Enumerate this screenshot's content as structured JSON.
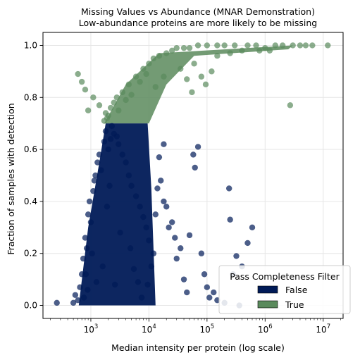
{
  "chart_data": {
    "type": "scatter",
    "title": "Missing Values vs Abundance (MNAR Demonstration)",
    "subtitle": "Low-abundance proteins are more likely to be missing",
    "xlabel": "Median intensity per protein (log scale)",
    "ylabel": "Fraction of samples with detection",
    "xscale": "log",
    "xlim": [
      150,
      22000000
    ],
    "ylim": [
      -0.05,
      1.05
    ],
    "x_ticks": [
      {
        "value": 1000,
        "base": "10",
        "exp": "3"
      },
      {
        "value": 10000,
        "base": "10",
        "exp": "4"
      },
      {
        "value": 100000,
        "base": "10",
        "exp": "5"
      },
      {
        "value": 1000000,
        "base": "10",
        "exp": "6"
      },
      {
        "value": 10000000,
        "base": "10",
        "exp": "7"
      }
    ],
    "y_ticks": [
      {
        "value": 0.0,
        "label": "0.0"
      },
      {
        "value": 0.2,
        "label": "0.2"
      },
      {
        "value": 0.4,
        "label": "0.4"
      },
      {
        "value": 0.6,
        "label": "0.6"
      },
      {
        "value": 0.8,
        "label": "0.8"
      },
      {
        "value": 1.0,
        "label": "1.0"
      }
    ],
    "grid": true,
    "threshold": 0.7,
    "legend": {
      "title": "Pass Completeness Filter",
      "placement": "lower-right",
      "entries": [
        {
          "label": "False",
          "color": "#001a57"
        },
        {
          "label": "True",
          "color": "#5a8a5c"
        }
      ]
    },
    "series": [
      {
        "name": "False",
        "color": "#001a57",
        "points": [
          [
            260,
            0.01
          ],
          [
            500,
            0.01
          ],
          [
            540,
            0.04
          ],
          [
            600,
            0.02
          ],
          [
            650,
            0.07
          ],
          [
            700,
            0.12
          ],
          [
            740,
            0.18
          ],
          [
            800,
            0.26
          ],
          [
            850,
            0.22
          ],
          [
            900,
            0.35
          ],
          [
            950,
            0.4
          ],
          [
            1000,
            0.32
          ],
          [
            1100,
            0.44
          ],
          [
            1150,
            0.48
          ],
          [
            1200,
            0.5
          ],
          [
            1300,
            0.55
          ],
          [
            1400,
            0.58
          ],
          [
            1500,
            0.52
          ],
          [
            1700,
            0.63
          ],
          [
            1800,
            0.67
          ],
          [
            2000,
            0.6
          ],
          [
            2200,
            0.64
          ],
          [
            2300,
            0.69
          ],
          [
            2500,
            0.66
          ],
          [
            3000,
            0.62
          ],
          [
            2800,
            0.65
          ],
          [
            3500,
            0.58
          ],
          [
            4000,
            0.55
          ],
          [
            4500,
            0.5
          ],
          [
            5000,
            0.46
          ],
          [
            6000,
            0.42
          ],
          [
            7000,
            0.38
          ],
          [
            8000,
            0.34
          ],
          [
            9000,
            0.3
          ],
          [
            10000,
            0.25
          ],
          [
            12000,
            0.2
          ],
          [
            14000,
            0.45
          ],
          [
            16000,
            0.48
          ],
          [
            18000,
            0.4
          ],
          [
            20000,
            0.38
          ],
          [
            22000,
            0.3
          ],
          [
            25000,
            0.32
          ],
          [
            28000,
            0.26
          ],
          [
            30000,
            0.18
          ],
          [
            35000,
            0.22
          ],
          [
            40000,
            0.1
          ],
          [
            45000,
            0.05
          ],
          [
            50000,
            0.27
          ],
          [
            58000,
            0.58
          ],
          [
            62000,
            0.53
          ],
          [
            70000,
            0.61
          ],
          [
            80000,
            0.2
          ],
          [
            90000,
            0.12
          ],
          [
            100000,
            0.07
          ],
          [
            110000,
            0.03
          ],
          [
            130000,
            0.05
          ],
          [
            150000,
            0.02
          ],
          [
            200000,
            0.01
          ],
          [
            240000,
            0.45
          ],
          [
            250000,
            0.33
          ],
          [
            280000,
            0.12
          ],
          [
            320000,
            0.19
          ],
          [
            360000,
            0.0
          ],
          [
            400000,
            0.15
          ],
          [
            500000,
            0.24
          ],
          [
            600000,
            0.3
          ],
          [
            18000,
            0.62
          ],
          [
            15000,
            0.57
          ],
          [
            13000,
            0.35
          ],
          [
            11000,
            0.15
          ],
          [
            9500,
            0.08
          ],
          [
            7500,
            0.03
          ],
          [
            6500,
            0.09
          ],
          [
            5500,
            0.14
          ],
          [
            4800,
            0.22
          ],
          [
            3200,
            0.28
          ],
          [
            2600,
            0.08
          ],
          [
            1600,
            0.15
          ],
          [
            1250,
            0.09
          ],
          [
            1050,
            0.2
          ],
          [
            880,
            0.06
          ],
          [
            760,
            0.03
          ],
          [
            820,
            0.12
          ],
          [
            1900,
            0.38
          ],
          [
            2100,
            0.46
          ]
        ]
      },
      {
        "name": "True",
        "color": "#5a8a5c",
        "points": [
          [
            1700,
            0.71
          ],
          [
            1800,
            0.74
          ],
          [
            1900,
            0.72
          ],
          [
            2000,
            0.73
          ],
          [
            2200,
            0.76
          ],
          [
            2500,
            0.78
          ],
          [
            2800,
            0.8
          ],
          [
            3000,
            0.75
          ],
          [
            3500,
            0.82
          ],
          [
            4000,
            0.79
          ],
          [
            4500,
            0.85
          ],
          [
            5000,
            0.81
          ],
          [
            6000,
            0.88
          ],
          [
            7000,
            0.86
          ],
          [
            8000,
            0.91
          ],
          [
            9000,
            0.89
          ],
          [
            10000,
            0.93
          ],
          [
            12000,
            0.95
          ],
          [
            15000,
            0.96
          ],
          [
            20000,
            0.97
          ],
          [
            25000,
            0.98
          ],
          [
            30000,
            0.99
          ],
          [
            40000,
            0.99
          ],
          [
            50000,
            0.99
          ],
          [
            70000,
            1.0
          ],
          [
            100000,
            1.0
          ],
          [
            150000,
            1.0
          ],
          [
            200000,
            1.0
          ],
          [
            300000,
            1.0
          ],
          [
            500000,
            1.0
          ],
          [
            700000,
            1.0
          ],
          [
            1000000,
            0.99
          ],
          [
            1500000,
            1.0
          ],
          [
            2000000,
            1.0
          ],
          [
            3000000,
            1.0
          ],
          [
            4000000,
            1.0
          ],
          [
            5000000,
            1.0
          ],
          [
            6500000,
            1.0
          ],
          [
            12000000,
            1.0
          ],
          [
            2700000,
            0.77
          ],
          [
            600,
            0.89
          ],
          [
            800,
            0.83
          ],
          [
            700,
            0.86
          ],
          [
            900,
            0.75
          ],
          [
            1100,
            0.8
          ],
          [
            1400,
            0.77
          ],
          [
            60000,
            0.93
          ],
          [
            80000,
            0.88
          ],
          [
            95000,
            0.85
          ],
          [
            120000,
            0.9
          ],
          [
            150000,
            0.96
          ],
          [
            250000,
            0.97
          ],
          [
            400000,
            0.98
          ],
          [
            800000,
            0.98
          ],
          [
            1200000,
            0.98
          ],
          [
            35000,
            0.91
          ],
          [
            45000,
            0.87
          ],
          [
            55000,
            0.82
          ],
          [
            18000,
            0.88
          ],
          [
            13000,
            0.84
          ]
        ]
      }
    ]
  }
}
